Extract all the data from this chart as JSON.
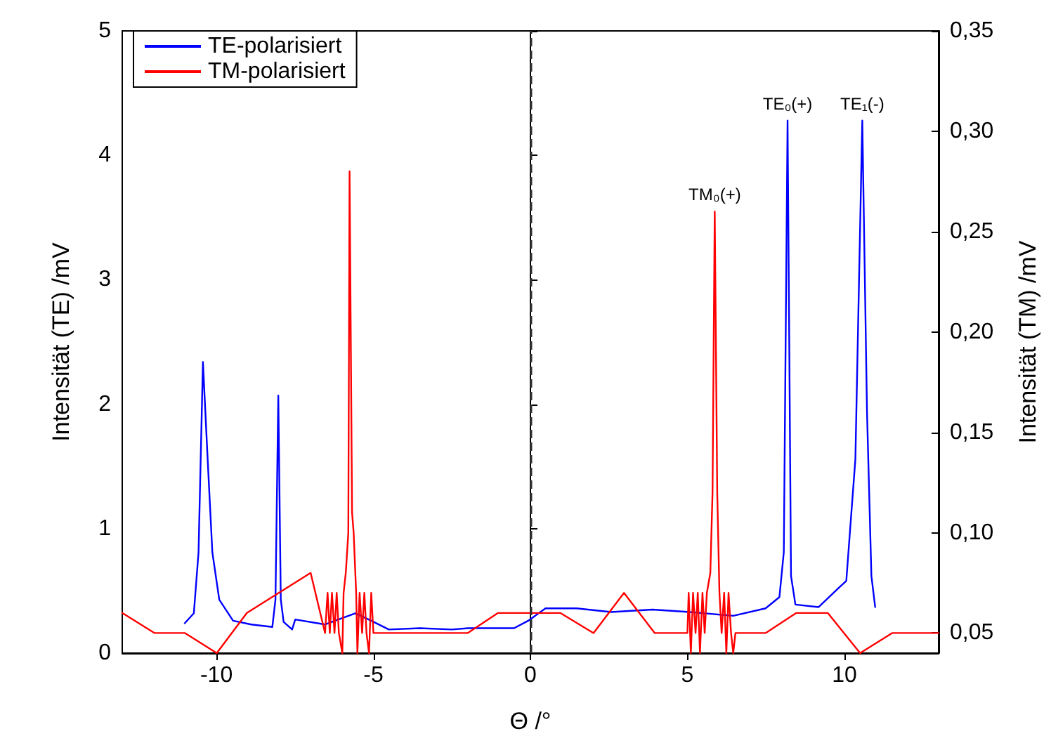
{
  "chart_data": {
    "type": "line",
    "xlabel": "Θ /°",
    "ylabel": "Intensität (TE) /mV",
    "y2label": "Intensität (TM) /mV",
    "xlim": [
      -13,
      13
    ],
    "xticks": [
      -10,
      -5,
      0,
      5,
      10
    ],
    "ylim": [
      0,
      5
    ],
    "yticks": [
      0,
      1,
      2,
      3,
      4,
      5
    ],
    "y2lim": [
      0.04,
      0.35
    ],
    "y2ticks": [
      {
        "value": 0.05,
        "label": "0,05"
      },
      {
        "value": 0.1,
        "label": "0,10"
      },
      {
        "value": 0.15,
        "label": "0,15"
      },
      {
        "value": 0.2,
        "label": "0,20"
      },
      {
        "value": 0.25,
        "label": "0,25"
      },
      {
        "value": 0.3,
        "label": "0,30"
      },
      {
        "value": 0.35,
        "label": "0,35"
      }
    ],
    "grid": false,
    "legend": "top left",
    "marker": "none",
    "line_style": "solid",
    "series": [
      {
        "name": "TE-polarisiert",
        "color": "#0000ff",
        "x": [
          -11.01,
          -10.72,
          -10.57,
          -10.43,
          -10.28,
          -10.13,
          -9.91,
          -9.47,
          -8.89,
          -8.22,
          -8.12,
          -8.03,
          -7.95,
          -7.86,
          -7.59,
          -7.49,
          -6.54,
          -5.58,
          -5.07,
          -4.51,
          -3.52,
          -2.5,
          -1.98,
          -0.52,
          -0.07,
          0.48,
          1.47,
          2.57,
          3.89,
          5.07,
          6.46,
          7.49,
          7.93,
          8.07,
          8.19,
          8.3,
          8.44,
          9.18,
          9.76,
          10.06,
          10.35,
          10.57,
          10.72,
          10.86,
          10.98
        ],
        "values": [
          0.24,
          0.32,
          0.81,
          2.34,
          1.56,
          0.81,
          0.43,
          0.26,
          0.23,
          0.21,
          0.43,
          2.07,
          0.43,
          0.25,
          0.19,
          0.27,
          0.23,
          0.32,
          0.26,
          0.19,
          0.2,
          0.19,
          0.2,
          0.2,
          0.26,
          0.36,
          0.36,
          0.33,
          0.35,
          0.33,
          0.3,
          0.36,
          0.45,
          0.81,
          4.28,
          0.62,
          0.39,
          0.37,
          0.51,
          0.58,
          1.56,
          4.28,
          1.94,
          0.62,
          0.37
        ]
      },
      {
        "name": "TM-polarisiert",
        "color": "#ff0000",
        "axis": "y2",
        "x": [
          -13,
          -11.97,
          -11.0,
          -9.99,
          -9.03,
          -7.0,
          -6.54,
          -6.46,
          -6.39,
          -6.32,
          -6.24,
          -6.17,
          -6.1,
          -5.99,
          -5.95,
          -5.88,
          -5.8,
          -5.76,
          -5.68,
          -5.63,
          -5.55,
          -5.51,
          -5.44,
          -5.36,
          -5.29,
          -5.22,
          -5.14,
          -5.07,
          -5.0,
          -2.0,
          -1.03,
          0.95,
          2.01,
          2.98,
          3.96,
          5.0,
          5.04,
          5.11,
          5.18,
          5.26,
          5.33,
          5.4,
          5.48,
          5.55,
          5.62,
          5.73,
          5.8,
          5.87,
          5.95,
          6.02,
          6.09,
          6.17,
          6.24,
          6.31,
          6.39,
          6.46,
          6.53,
          7.49,
          8.47,
          9.47,
          10.5,
          11.52,
          13
        ],
        "values": [
          0.06,
          0.05,
          0.05,
          0.04,
          0.06,
          0.08,
          0.05,
          0.07,
          0.05,
          0.07,
          0.05,
          0.07,
          0.05,
          0.04,
          0.07,
          0.08,
          0.1,
          0.28,
          0.11,
          0.1,
          0.07,
          0.04,
          0.07,
          0.05,
          0.07,
          0.05,
          0.04,
          0.07,
          0.05,
          0.05,
          0.06,
          0.06,
          0.05,
          0.07,
          0.05,
          0.05,
          0.07,
          0.04,
          0.07,
          0.05,
          0.07,
          0.04,
          0.07,
          0.05,
          0.07,
          0.08,
          0.12,
          0.26,
          0.12,
          0.07,
          0.05,
          0.07,
          0.04,
          0.07,
          0.05,
          0.04,
          0.05,
          0.05,
          0.06,
          0.06,
          0.04,
          0.05,
          0.05
        ]
      }
    ],
    "ref_lines": [
      {
        "axis": "x",
        "value": 0,
        "color": "#333333",
        "line_style": "dashed"
      }
    ],
    "annotations": [
      {
        "text": "TM₀(+)",
        "x": 5.87,
        "y": 3.55
      },
      {
        "text": "TE₀(+)",
        "x": 8.19,
        "y": 4.28
      },
      {
        "text": "TE₁(-)",
        "x": 10.57,
        "y": 4.28
      }
    ]
  }
}
